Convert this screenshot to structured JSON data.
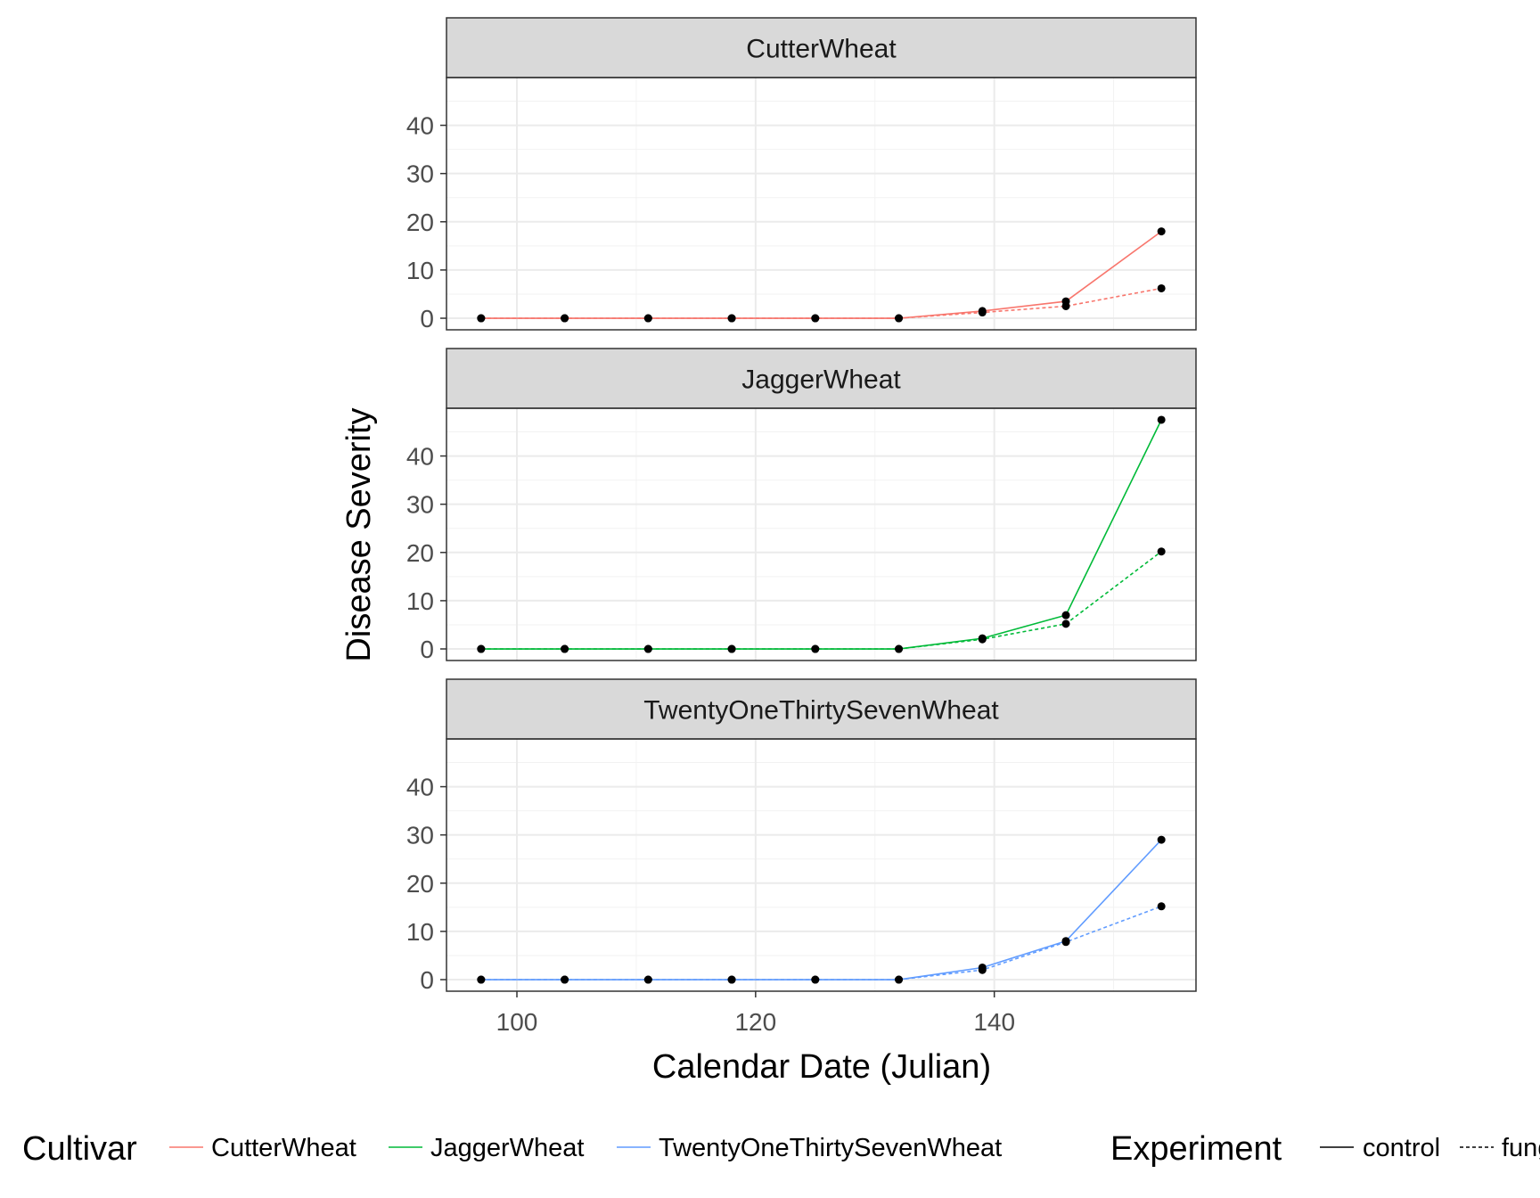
{
  "chart_data": {
    "type": "line",
    "facets": [
      {
        "title": "CutterWheat",
        "color": "#F8766D",
        "series": [
          {
            "experiment": "control",
            "x": [
              97,
              104,
              111,
              118,
              125,
              132,
              139,
              146,
              154
            ],
            "y": [
              0,
              0,
              0,
              0,
              0,
              0,
              1.5,
              3.5,
              18
            ]
          },
          {
            "experiment": "fungicide",
            "x": [
              97,
              104,
              111,
              118,
              125,
              132,
              139,
              146,
              154
            ],
            "y": [
              0,
              0,
              0,
              0,
              0,
              0,
              1.2,
              2.5,
              6.2
            ]
          }
        ]
      },
      {
        "title": "JaggerWheat",
        "color": "#00BA38",
        "series": [
          {
            "experiment": "control",
            "x": [
              97,
              104,
              111,
              118,
              125,
              132,
              139,
              146,
              154
            ],
            "y": [
              0,
              0,
              0,
              0,
              0,
              0,
              2.2,
              7,
              47.5
            ]
          },
          {
            "experiment": "fungicide",
            "x": [
              97,
              104,
              111,
              118,
              125,
              132,
              139,
              146,
              154
            ],
            "y": [
              0,
              0,
              0,
              0,
              0,
              0,
              2,
              5.2,
              20.2
            ]
          }
        ]
      },
      {
        "title": "TwentyOneThirtySevenWheat",
        "color": "#619CFF",
        "series": [
          {
            "experiment": "control",
            "x": [
              97,
              104,
              111,
              118,
              125,
              132,
              139,
              146,
              154
            ],
            "y": [
              0,
              0,
              0,
              0,
              0,
              0,
              2.5,
              8,
              29
            ]
          },
          {
            "experiment": "fungicide",
            "x": [
              97,
              104,
              111,
              118,
              125,
              132,
              139,
              146,
              154
            ],
            "y": [
              0,
              0,
              0,
              0,
              0,
              0,
              2,
              7.8,
              15.2
            ]
          }
        ]
      }
    ],
    "xlabel": "Calendar Date (Julian)",
    "ylabel": "Disease Severity",
    "xlim": [
      94.1,
      156.9
    ],
    "ylim": [
      -2.4,
      49.9
    ],
    "xticks": [
      100,
      120,
      140
    ],
    "yticks": [
      0,
      10,
      20,
      30,
      40
    ],
    "grid": true,
    "point_color": "#000000",
    "legend": {
      "placement": "bottom",
      "cultivar_title": "Cultivar",
      "cultivar_items": [
        {
          "label": "CutterWheat",
          "color": "#F8766D"
        },
        {
          "label": "JaggerWheat",
          "color": "#00BA38"
        },
        {
          "label": "TwentyOneThirtySevenWheat",
          "color": "#619CFF"
        }
      ],
      "experiment_title": "Experiment",
      "experiment_items": [
        {
          "label": "control",
          "linetype": "solid"
        },
        {
          "label": "fungicide",
          "linetype": "dashed"
        }
      ]
    }
  }
}
